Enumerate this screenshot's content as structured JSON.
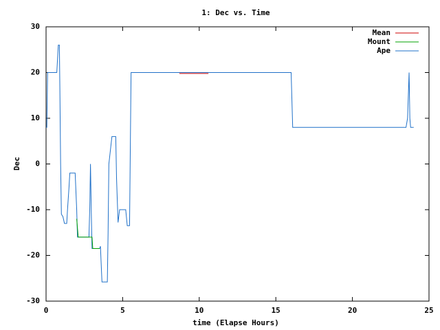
{
  "chart_data": {
    "type": "line",
    "title": "1: Dec vs. Time",
    "x_label": "time (Elapse Hours)",
    "y_label": "Dec",
    "xlim": [
      0,
      25
    ],
    "xticks": [
      0,
      5,
      10,
      15,
      20,
      25
    ],
    "ylim": [
      -30,
      30
    ],
    "yticks": [
      -30,
      -20,
      -10,
      0,
      10,
      20,
      30
    ],
    "grid": false,
    "legend": "top-right",
    "series": [
      {
        "name": "Mean",
        "color": "#cc0000",
        "x": [
          8.7,
          10.6
        ],
        "values": [
          19.8,
          19.8
        ]
      },
      {
        "name": "Mount",
        "color": "#00a000",
        "x": [
          2.0,
          2.1,
          2.8,
          3.0,
          3.05,
          3.5
        ],
        "values": [
          -12,
          -16,
          -16,
          -16,
          -18.5,
          -18.5
        ]
      },
      {
        "name": "Ape",
        "color": "#1f70c8",
        "x": [
          0,
          0.05,
          0.1,
          0.7,
          0.75,
          0.8,
          0.87,
          0.9,
          0.95,
          1.0,
          1.1,
          1.2,
          1.35,
          1.4,
          1.5,
          1.55,
          1.9,
          2.0,
          2.05,
          2.8,
          2.85,
          2.9,
          2.95,
          3.0,
          3.5,
          3.55,
          3.6,
          3.65,
          4.0,
          4.05,
          4.1,
          4.2,
          4.3,
          4.55,
          4.6,
          4.7,
          4.8,
          5.2,
          5.3,
          5.45,
          5.55,
          16,
          16.1,
          23.5,
          23.6,
          23.7,
          23.75,
          23.8,
          24
        ],
        "values": [
          8,
          8,
          20,
          20,
          23,
          26,
          26,
          17,
          0,
          -11,
          -11.5,
          -13,
          -13,
          -10,
          -5,
          -2,
          -2,
          -10,
          -16,
          -16,
          -10,
          0,
          -10,
          -18.5,
          -18.5,
          -18,
          -22,
          -25.8,
          -25.8,
          -15,
          0,
          3,
          6,
          6,
          -3,
          -12.8,
          -10,
          -10,
          -13.5,
          -13.5,
          20,
          20,
          8,
          8,
          10,
          20,
          10,
          8,
          8
        ]
      }
    ]
  }
}
